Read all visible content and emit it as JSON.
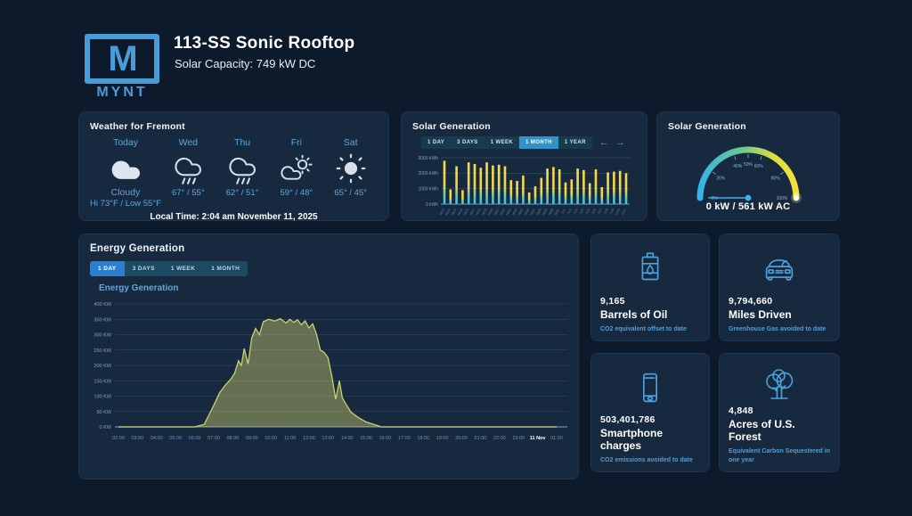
{
  "header": {
    "logo_m": "M",
    "logo_text": "MYNT",
    "title": "113-SS Sonic Rooftop",
    "subtitle": "Solar Capacity: 749 kW DC"
  },
  "weather": {
    "title": "Weather for Fremont",
    "days": [
      {
        "label": "Today",
        "icon": "cloud-filled-icon",
        "condition": "Cloudy",
        "temps": "Hi 73°F / Low 55°F"
      },
      {
        "label": "Wed",
        "icon": "rain-cloud-icon",
        "condition": "",
        "temps": "67° / 55°"
      },
      {
        "label": "Thu",
        "icon": "rain-cloud-icon",
        "condition": "",
        "temps": "62° / 51°"
      },
      {
        "label": "Fri",
        "icon": "sun-cloud-icon",
        "condition": "",
        "temps": "59° / 48°"
      },
      {
        "label": "Sat",
        "icon": "sun-icon",
        "condition": "",
        "temps": "65° / 45°"
      }
    ],
    "local_time": "Local Time: 2:04 am November 11, 2025"
  },
  "solar_bars": {
    "title": "Solar Generation",
    "tabs": [
      "1 DAY",
      "3 DAYS",
      "1 WEEK",
      "1 MONTH",
      "1 YEAR"
    ],
    "active_tab": "1 MONTH",
    "arrow_left": "←",
    "arrow_right": "→"
  },
  "gauge_panel": {
    "title": "Solar Generation",
    "caption": "0 kW / 561 kW AC"
  },
  "energy": {
    "title": "Energy Generation",
    "tabs": [
      "1 DAY",
      "3 DAYS",
      "1 WEEK",
      "1 MONTH"
    ],
    "active_tab": "1 DAY",
    "chart_title": "Energy Generation"
  },
  "cards": [
    {
      "icon": "oil-barrel-icon",
      "value": "9,165",
      "label": "Barrels of Oil",
      "caption": "CO2 equivalent offset to date"
    },
    {
      "icon": "car-icon",
      "value": "9,794,660",
      "label": "Miles Driven",
      "caption": "Greenhouse Gas avoided to date"
    },
    {
      "icon": "smartphone-icon",
      "value": "503,401,786",
      "label": "Smartphone charges",
      "caption": "CO2 emissions avoided to date"
    },
    {
      "icon": "tree-icon",
      "value": "4,848",
      "label": "Acres of U.S. Forest",
      "caption": "Equivalent Carbon Sequestered in one year"
    }
  ],
  "colors": {
    "background": "#0d1a2b",
    "panel": "#17293e",
    "accent_blue": "#4f9fd7",
    "bright_blue": "#4da3e0",
    "active_tab": "#2e93c9",
    "bar_top": "#fcd947",
    "bar_bottom": "#3bbfed",
    "area_fill": "#c5c76a",
    "gauge_left": "#35b3ea",
    "gauge_right": "#f4e33a"
  },
  "chart_data": [
    {
      "type": "bar",
      "title": "Solar Generation",
      "ylabel": "kWh",
      "ylim": [
        0,
        3000
      ],
      "yticks": [
        3000,
        2000,
        1000,
        0
      ],
      "ytick_suffix": " kWh",
      "categories": [
        "10/12",
        "10/13",
        "10/14",
        "10/15",
        "10/16",
        "10/17",
        "10/18",
        "10/19",
        "10/20",
        "10/21",
        "10/22",
        "10/23",
        "10/24",
        "10/25",
        "10/26",
        "10/27",
        "10/28",
        "10/29",
        "10/30",
        "10/31",
        "11/1",
        "11/2",
        "11/3",
        "11/4",
        "11/5",
        "11/6",
        "11/7",
        "11/8",
        "11/9",
        "11/10",
        "11/11"
      ],
      "values": [
        2800,
        950,
        2450,
        900,
        2700,
        2600,
        2350,
        2700,
        2500,
        2550,
        2450,
        1550,
        1500,
        1850,
        750,
        1150,
        1700,
        2300,
        2400,
        2250,
        1400,
        1600,
        2300,
        2200,
        1350,
        2250,
        1100,
        2050,
        2100,
        2150,
        2000
      ]
    },
    {
      "type": "area",
      "title": "Energy Generation",
      "ylabel": "KW",
      "ylim": [
        0,
        400
      ],
      "ytick_step": 50,
      "ytick_suffix": " KW",
      "x_labels": [
        "02:00",
        "03:00",
        "04:00",
        "05:00",
        "06:00",
        "07:00",
        "08:00",
        "09:00",
        "10:00",
        "11:00",
        "12:00",
        "13:00",
        "14:00",
        "15:00",
        "16:00",
        "17:00",
        "18:00",
        "19:00",
        "20:00",
        "21:00",
        "22:00",
        "23:00",
        "11 Nov",
        "01:00"
      ],
      "x_label_start_hour": 2,
      "highlight_label": "11 Nov",
      "points": [
        [
          2,
          0
        ],
        [
          3,
          0
        ],
        [
          4,
          0
        ],
        [
          5,
          0
        ],
        [
          6,
          0
        ],
        [
          6.5,
          8
        ],
        [
          6.8,
          45
        ],
        [
          7,
          70
        ],
        [
          7.3,
          110
        ],
        [
          7.6,
          135
        ],
        [
          7.9,
          155
        ],
        [
          8.1,
          175
        ],
        [
          8.3,
          215
        ],
        [
          8.45,
          200
        ],
        [
          8.6,
          255
        ],
        [
          8.8,
          205
        ],
        [
          9.0,
          290
        ],
        [
          9.2,
          320
        ],
        [
          9.4,
          300
        ],
        [
          9.6,
          342
        ],
        [
          9.9,
          350
        ],
        [
          10.2,
          344
        ],
        [
          10.5,
          352
        ],
        [
          10.8,
          338
        ],
        [
          11.0,
          350
        ],
        [
          11.2,
          340
        ],
        [
          11.4,
          348
        ],
        [
          11.6,
          332
        ],
        [
          11.8,
          345
        ],
        [
          12.0,
          322
        ],
        [
          12.2,
          335
        ],
        [
          12.4,
          300
        ],
        [
          12.6,
          250
        ],
        [
          12.8,
          242
        ],
        [
          13.0,
          225
        ],
        [
          13.2,
          165
        ],
        [
          13.4,
          90
        ],
        [
          13.6,
          150
        ],
        [
          13.75,
          95
        ],
        [
          13.9,
          78
        ],
        [
          14.2,
          48
        ],
        [
          14.6,
          30
        ],
        [
          15.0,
          16
        ],
        [
          15.5,
          6
        ],
        [
          15.8,
          0
        ],
        [
          17,
          0
        ],
        [
          18,
          0
        ],
        [
          19,
          0
        ],
        [
          20,
          0
        ],
        [
          21,
          0
        ],
        [
          22,
          0
        ],
        [
          23,
          0
        ],
        [
          24,
          0
        ],
        [
          25,
          0
        ]
      ]
    },
    {
      "type": "gauge",
      "value_pct": 0,
      "label": "0 kW / 561 kW AC",
      "tick_labels": [
        "0%",
        "20%",
        "40%",
        "50%",
        "60%",
        "80%",
        "100%"
      ],
      "tick_angles": [
        180,
        144,
        108,
        90,
        72,
        36,
        0
      ]
    }
  ]
}
